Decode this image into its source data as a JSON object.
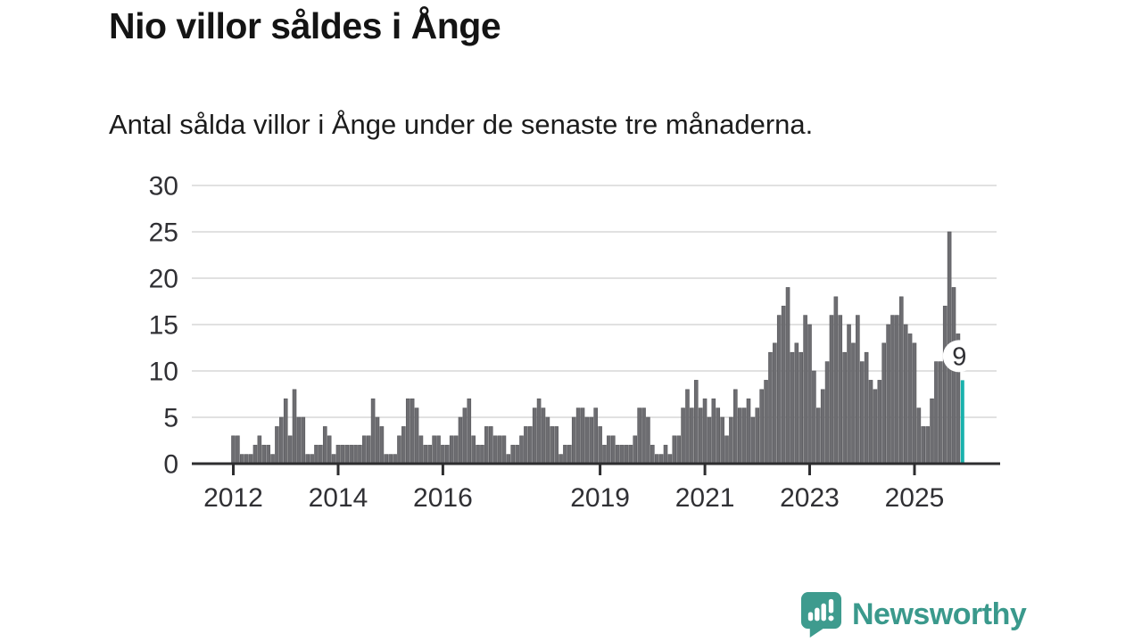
{
  "title": "Nio villor såldes i Ånge",
  "subtitle": "Antal sålda villor i Ånge under de senaste tre månaderna.",
  "annotation": {
    "label": "9"
  },
  "logo": {
    "text": "Newsworthy"
  },
  "colors": {
    "bar": "#6d6d71",
    "bar_edge": "#58585c",
    "highlight": "#1ab2ad",
    "axis": "#2d2d2f",
    "grid": "#d7d7d7",
    "tick_text": "#303034",
    "logo_teal": "#3e9b8e"
  },
  "chart_data": {
    "type": "bar",
    "title": "Nio villor såldes i Ånge",
    "subtitle": "Antal sålda villor i Ånge under de senaste tre månaderna.",
    "x_start": "2012-01",
    "x_end": "2025-12",
    "x_unit": "month",
    "ylim": [
      0,
      30
    ],
    "y_ticks": [
      0,
      5,
      10,
      15,
      20,
      25,
      30
    ],
    "grid": true,
    "x_ticks": [
      {
        "label": "2012",
        "month_index": 0
      },
      {
        "label": "2014",
        "month_index": 24
      },
      {
        "label": "2016",
        "month_index": 48
      },
      {
        "label": "2019",
        "month_index": 84
      },
      {
        "label": "2021",
        "month_index": 108
      },
      {
        "label": "2023",
        "month_index": 132
      },
      {
        "label": "2025",
        "month_index": 156
      }
    ],
    "values": [
      3,
      3,
      1,
      1,
      1,
      2,
      3,
      2,
      2,
      1,
      4,
      5,
      7,
      3,
      8,
      5,
      5,
      1,
      1,
      2,
      2,
      4,
      3,
      1,
      2,
      2,
      2,
      2,
      2,
      2,
      3,
      3,
      7,
      5,
      4,
      1,
      1,
      1,
      3,
      4,
      7,
      7,
      6,
      3,
      2,
      2,
      3,
      3,
      2,
      2,
      3,
      3,
      5,
      6,
      7,
      3,
      2,
      2,
      4,
      4,
      3,
      3,
      3,
      1,
      2,
      2,
      3,
      4,
      4,
      6,
      7,
      6,
      5,
      4,
      4,
      1,
      2,
      2,
      5,
      6,
      6,
      5,
      5,
      6,
      4,
      2,
      3,
      3,
      2,
      2,
      2,
      2,
      3,
      6,
      6,
      5,
      2,
      1,
      1,
      2,
      1,
      3,
      3,
      6,
      8,
      6,
      9,
      6,
      7,
      5,
      7,
      6,
      5,
      3,
      5,
      8,
      6,
      6,
      7,
      5,
      6,
      8,
      9,
      12,
      13,
      16,
      17,
      19,
      12,
      13,
      12,
      16,
      15,
      10,
      6,
      8,
      11,
      16,
      18,
      16,
      12,
      15,
      13,
      16,
      11,
      12,
      9,
      8,
      9,
      13,
      15,
      16,
      16,
      18,
      15,
      14,
      13,
      6,
      4,
      4,
      7,
      11,
      11,
      17,
      25,
      19,
      14,
      9
    ],
    "highlight_index": 167,
    "highlight_value": 9
  }
}
